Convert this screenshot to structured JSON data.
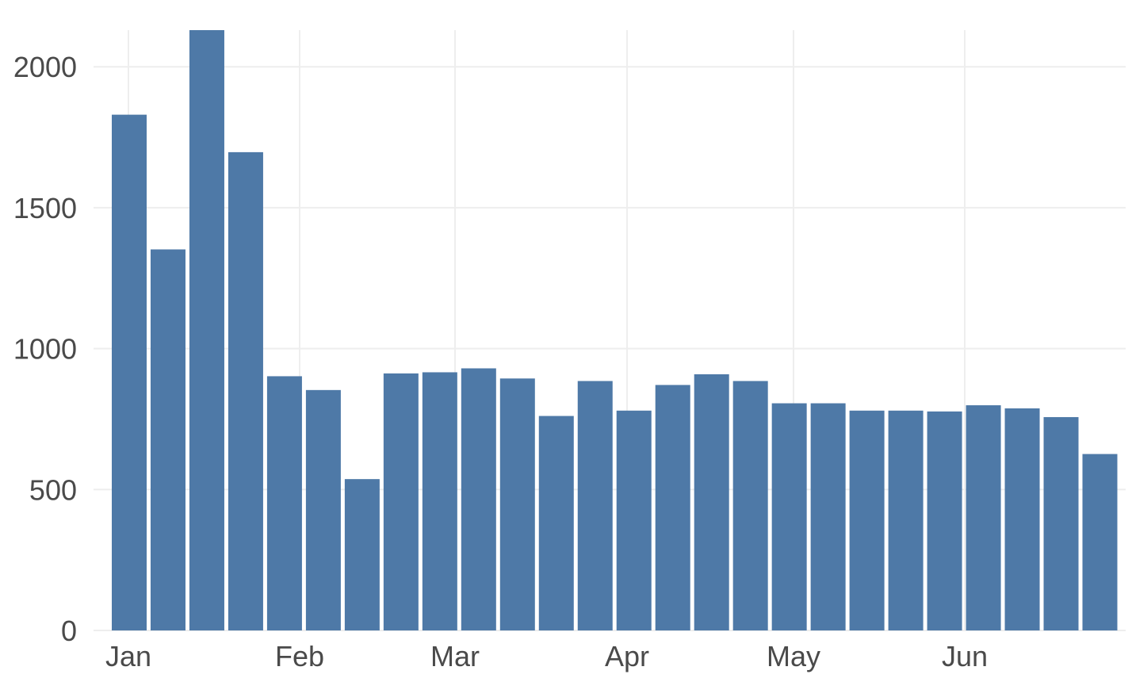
{
  "chart_data": {
    "type": "bar",
    "colors": {
      "bar": "#4e79a7",
      "grid": "#eeeeee",
      "text": "#4a4a4a"
    },
    "x_tick_labels": [
      "Jan",
      "Feb",
      "Mar",
      "Apr",
      "May",
      "Jun"
    ],
    "y_ticks": [
      0,
      500,
      1000,
      1500,
      2000
    ],
    "ylim": [
      0,
      2130
    ],
    "grid": true,
    "legend": false,
    "values": [
      1830,
      1352,
      2130,
      1697,
      902,
      853,
      537,
      912,
      916,
      930,
      894,
      761,
      885,
      780,
      871,
      909,
      885,
      806,
      806,
      780,
      780,
      777,
      799,
      788,
      757,
      626
    ],
    "title": "",
    "xlabel": "",
    "ylabel": ""
  }
}
